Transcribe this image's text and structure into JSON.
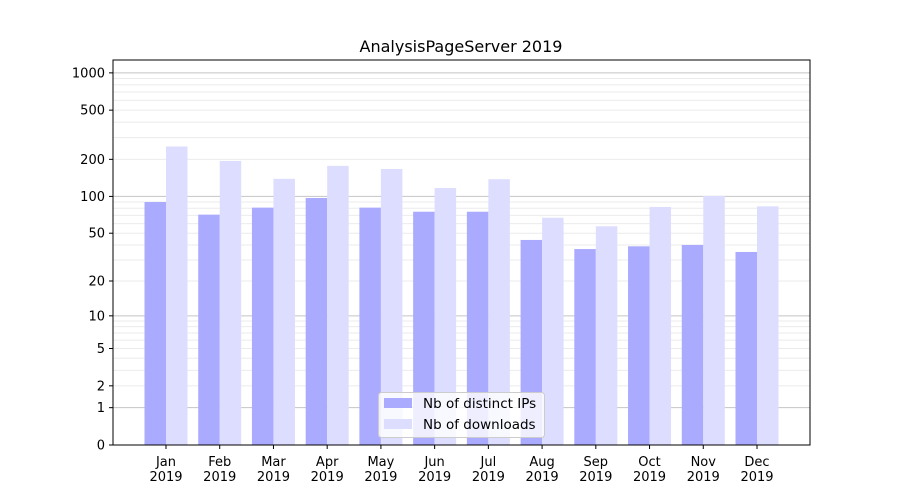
{
  "chart_data": {
    "type": "bar",
    "title": "AnalysisPageServer 2019",
    "xlabel": "",
    "ylabel": "",
    "yscale": "log(1+y)",
    "ylim": [
      0,
      1270
    ],
    "yticks": [
      0,
      1,
      2,
      5,
      10,
      20,
      50,
      100,
      200,
      500,
      1000
    ],
    "grid": true,
    "legend_position": "lower center",
    "categories": [
      "Jan\n2019",
      "Feb\n2019",
      "Mar\n2019",
      "Apr\n2019",
      "May\n2019",
      "Jun\n2019",
      "Jul\n2019",
      "Aug\n2019",
      "Sep\n2019",
      "Oct\n2019",
      "Nov\n2019",
      "Dec\n2019"
    ],
    "series": [
      {
        "name": "Nb of distinct IPs",
        "color": "#aaaaff",
        "values": [
          90,
          71,
          81,
          97,
          81,
          75,
          75,
          44,
          37,
          39,
          40,
          35
        ]
      },
      {
        "name": "Nb of downloads",
        "color": "#ddddff",
        "values": [
          254,
          194,
          139,
          177,
          167,
          117,
          138,
          67,
          57,
          82,
          101,
          83
        ]
      }
    ]
  }
}
